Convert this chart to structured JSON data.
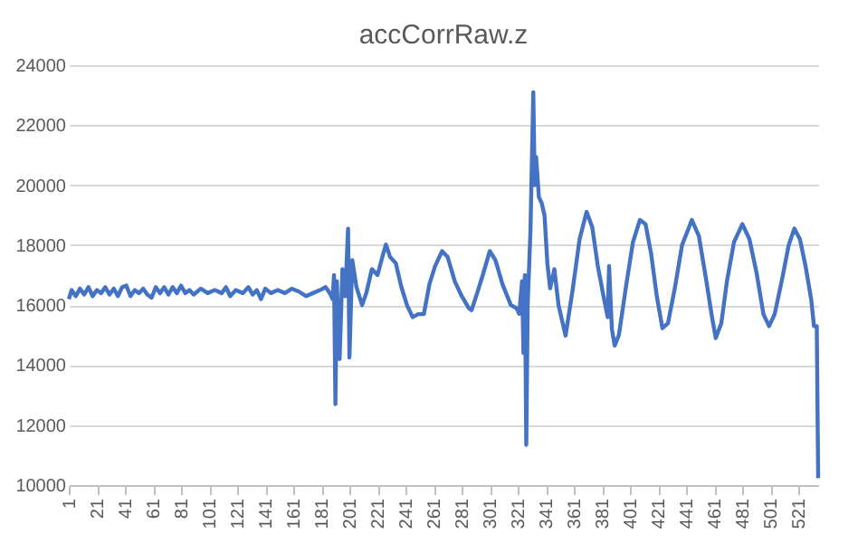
{
  "chart_data": {
    "type": "line",
    "title": "accCorrRaw.z",
    "x": [
      1,
      3,
      6,
      9,
      12,
      15,
      18,
      21,
      24,
      27,
      30,
      33,
      36,
      39,
      42,
      45,
      48,
      51,
      54,
      57,
      60,
      63,
      66,
      69,
      72,
      75,
      78,
      81,
      84,
      87,
      90,
      95,
      100,
      105,
      110,
      113,
      116,
      120,
      125,
      129,
      132,
      135,
      138,
      141,
      145,
      150,
      155,
      160,
      165,
      170,
      175,
      180,
      184,
      187,
      189,
      190,
      191,
      192,
      194,
      196,
      198,
      200,
      201,
      203,
      206,
      210,
      213,
      217,
      221,
      225,
      227,
      230,
      234,
      238,
      242,
      246,
      250,
      254,
      258,
      262,
      267,
      271,
      276,
      281,
      286,
      288,
      292,
      296,
      301,
      305,
      310,
      316,
      320,
      322,
      324,
      325,
      326,
      327,
      328,
      330,
      332,
      333,
      334,
      336,
      338,
      340,
      342,
      344,
      347,
      350,
      355,
      360,
      365,
      370,
      374,
      378,
      382,
      385,
      386,
      388,
      390,
      393,
      398,
      403,
      408,
      412,
      416,
      420,
      424,
      428,
      433,
      438,
      445,
      450,
      455,
      459,
      462,
      466,
      470,
      475,
      481,
      486,
      491,
      496,
      500,
      504,
      509,
      514,
      518,
      522,
      526,
      530,
      532,
      534,
      535
    ],
    "series": [
      {
        "color": "#4472c4",
        "values": [
          16200,
          16500,
          16300,
          16550,
          16350,
          16600,
          16300,
          16500,
          16400,
          16600,
          16350,
          16550,
          16300,
          16600,
          16650,
          16300,
          16500,
          16400,
          16550,
          16350,
          16250,
          16600,
          16400,
          16600,
          16350,
          16600,
          16400,
          16650,
          16400,
          16500,
          16350,
          16550,
          16400,
          16500,
          16400,
          16600,
          16300,
          16500,
          16400,
          16600,
          16350,
          16500,
          16200,
          16550,
          16400,
          16500,
          16400,
          16550,
          16450,
          16300,
          16400,
          16500,
          16600,
          16400,
          16200,
          17000,
          12700,
          16800,
          14200,
          17200,
          16300,
          18550,
          14250,
          17500,
          16600,
          16000,
          16400,
          17200,
          17000,
          17700,
          18020,
          17600,
          17400,
          16600,
          16000,
          15600,
          15700,
          15700,
          16700,
          17300,
          17800,
          17600,
          16800,
          16300,
          15900,
          15830,
          16400,
          17000,
          17800,
          17500,
          16700,
          16000,
          15900,
          15710,
          16800,
          14400,
          17000,
          11340,
          16000,
          18500,
          23100,
          20000,
          20940,
          19600,
          19400,
          18990,
          17400,
          16560,
          17200,
          16000,
          14980,
          16500,
          18200,
          19110,
          18600,
          17300,
          16300,
          15600,
          17300,
          15200,
          14650,
          15000,
          16600,
          18100,
          18840,
          18700,
          17700,
          16300,
          15230,
          15400,
          16600,
          18000,
          18840,
          18300,
          16900,
          15700,
          14900,
          15400,
          16800,
          18100,
          18700,
          18200,
          17100,
          15700,
          15300,
          15700,
          16800,
          18000,
          18550,
          18200,
          17300,
          16200,
          15300,
          15300,
          10230
        ]
      }
    ],
    "xlim": [
      1,
      535
    ],
    "xticks": [
      1,
      21,
      41,
      61,
      81,
      101,
      121,
      141,
      161,
      181,
      201,
      221,
      241,
      261,
      281,
      301,
      321,
      341,
      361,
      381,
      401,
      421,
      441,
      461,
      481,
      501,
      521
    ],
    "ylim": [
      10000,
      24000
    ],
    "yticks": [
      10000,
      12000,
      14000,
      16000,
      18000,
      20000,
      22000,
      24000
    ],
    "grid": "y"
  }
}
